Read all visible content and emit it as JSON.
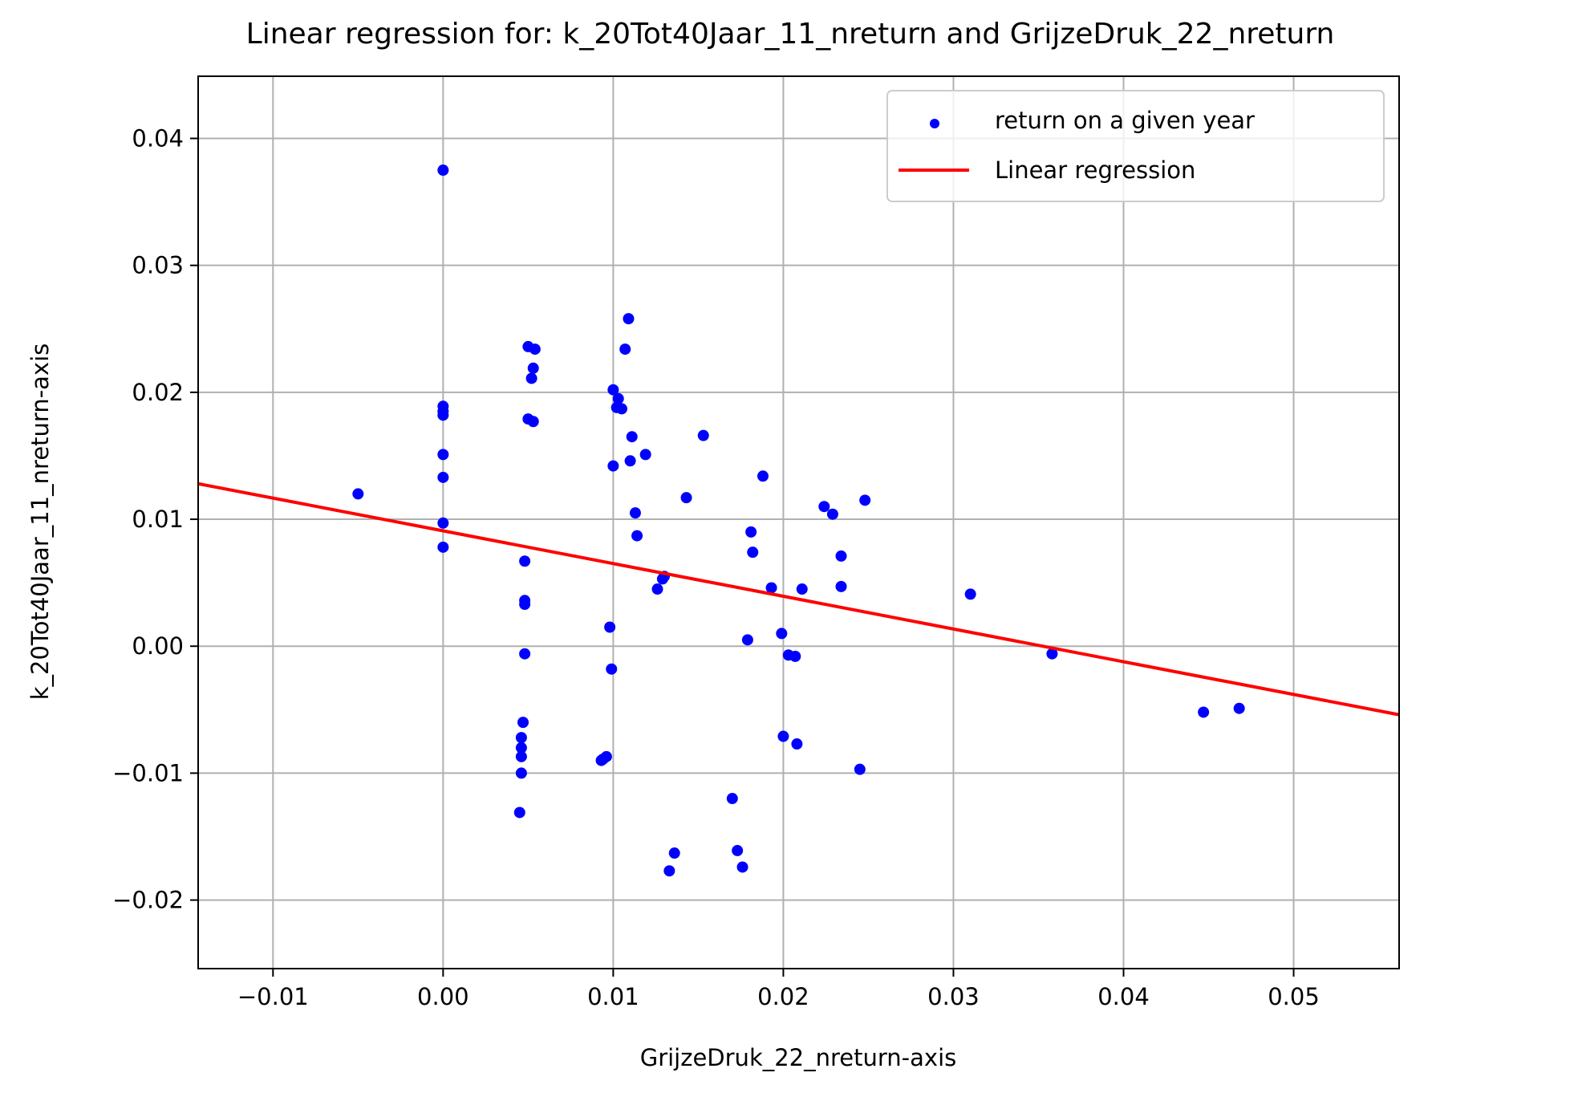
{
  "chart_data": {
    "type": "scatter",
    "title": "Linear regression for: k_20Tot40Jaar_11_nreturn and GrijzeDruk_22_nreturn",
    "xlabel": "GrijzeDruk_22_nreturn-axis",
    "ylabel": "k_20Tot40Jaar_11_nreturn-axis",
    "xlim": [
      -0.0144,
      0.0562
    ],
    "ylim": [
      -0.0254,
      0.0449
    ],
    "xticks": [
      -0.01,
      0.0,
      0.01,
      0.02,
      0.03,
      0.04,
      0.05
    ],
    "xtick_labels": [
      "−0.01",
      "0.00",
      "0.01",
      "0.02",
      "0.03",
      "0.04",
      "0.05"
    ],
    "yticks": [
      -0.02,
      -0.01,
      0.0,
      0.01,
      0.02,
      0.03,
      0.04
    ],
    "ytick_labels": [
      "−0.02",
      "−0.01",
      "0.00",
      "0.01",
      "0.02",
      "0.03",
      "0.04"
    ],
    "grid": true,
    "legend_position": "top-right",
    "series": [
      {
        "name": "return on a given year",
        "kind": "scatter",
        "color": "#0000ff",
        "points": [
          [
            -0.005,
            0.012
          ],
          [
            0.0,
            0.0375
          ],
          [
            0.0,
            0.0189
          ],
          [
            0.0,
            0.0185
          ],
          [
            0.0,
            0.0182
          ],
          [
            0.0,
            0.0151
          ],
          [
            0.0,
            0.0133
          ],
          [
            0.0,
            0.0097
          ],
          [
            0.0,
            0.0078
          ],
          [
            0.005,
            0.0236
          ],
          [
            0.0054,
            0.0234
          ],
          [
            0.0053,
            0.0219
          ],
          [
            0.0052,
            0.0211
          ],
          [
            0.005,
            0.0179
          ],
          [
            0.0053,
            0.0177
          ],
          [
            0.0048,
            0.0067
          ],
          [
            0.0048,
            0.0036
          ],
          [
            0.0048,
            0.0033
          ],
          [
            0.0048,
            -0.0006
          ],
          [
            0.0047,
            -0.006
          ],
          [
            0.0046,
            -0.0072
          ],
          [
            0.0046,
            -0.008
          ],
          [
            0.0046,
            -0.0087
          ],
          [
            0.0046,
            -0.01
          ],
          [
            0.0045,
            -0.0131
          ],
          [
            0.0109,
            0.0258
          ],
          [
            0.0107,
            0.0234
          ],
          [
            0.01,
            0.0202
          ],
          [
            0.0103,
            0.0195
          ],
          [
            0.0102,
            0.0188
          ],
          [
            0.0105,
            0.0187
          ],
          [
            0.0111,
            0.0165
          ],
          [
            0.0119,
            0.0151
          ],
          [
            0.011,
            0.0146
          ],
          [
            0.01,
            0.0142
          ],
          [
            0.0113,
            0.0105
          ],
          [
            0.0114,
            0.0087
          ],
          [
            0.013,
            0.0055
          ],
          [
            0.0129,
            0.0053
          ],
          [
            0.0126,
            0.0045
          ],
          [
            0.0098,
            0.0015
          ],
          [
            0.0099,
            -0.0018
          ],
          [
            0.0096,
            -0.0087
          ],
          [
            0.0094,
            -0.0089
          ],
          [
            0.0093,
            -0.009
          ],
          [
            0.0136,
            -0.0163
          ],
          [
            0.0133,
            -0.0177
          ],
          [
            0.0153,
            0.0166
          ],
          [
            0.0143,
            0.0117
          ],
          [
            0.0188,
            0.0134
          ],
          [
            0.0181,
            0.009
          ],
          [
            0.0182,
            0.0074
          ],
          [
            0.0193,
            0.0046
          ],
          [
            0.0211,
            0.0045
          ],
          [
            0.0179,
            0.0005
          ],
          [
            0.0199,
            0.001
          ],
          [
            0.0203,
            -0.0007
          ],
          [
            0.0207,
            -0.0008
          ],
          [
            0.02,
            -0.0071
          ],
          [
            0.0208,
            -0.0077
          ],
          [
            0.017,
            -0.012
          ],
          [
            0.0173,
            -0.0161
          ],
          [
            0.0176,
            -0.0174
          ],
          [
            0.0224,
            0.011
          ],
          [
            0.0229,
            0.0104
          ],
          [
            0.0248,
            0.0115
          ],
          [
            0.0234,
            0.0071
          ],
          [
            0.0234,
            0.0047
          ],
          [
            0.0245,
            -0.0097
          ],
          [
            0.031,
            0.0041
          ],
          [
            0.0358,
            -0.0006
          ],
          [
            0.0447,
            -0.0052
          ],
          [
            0.0468,
            -0.0049
          ]
        ]
      },
      {
        "name": "Linear regression",
        "kind": "line",
        "color": "#ff0000",
        "x": [
          -0.0144,
          0.0562
        ],
        "y": [
          0.0128,
          -0.0054
        ]
      }
    ]
  }
}
